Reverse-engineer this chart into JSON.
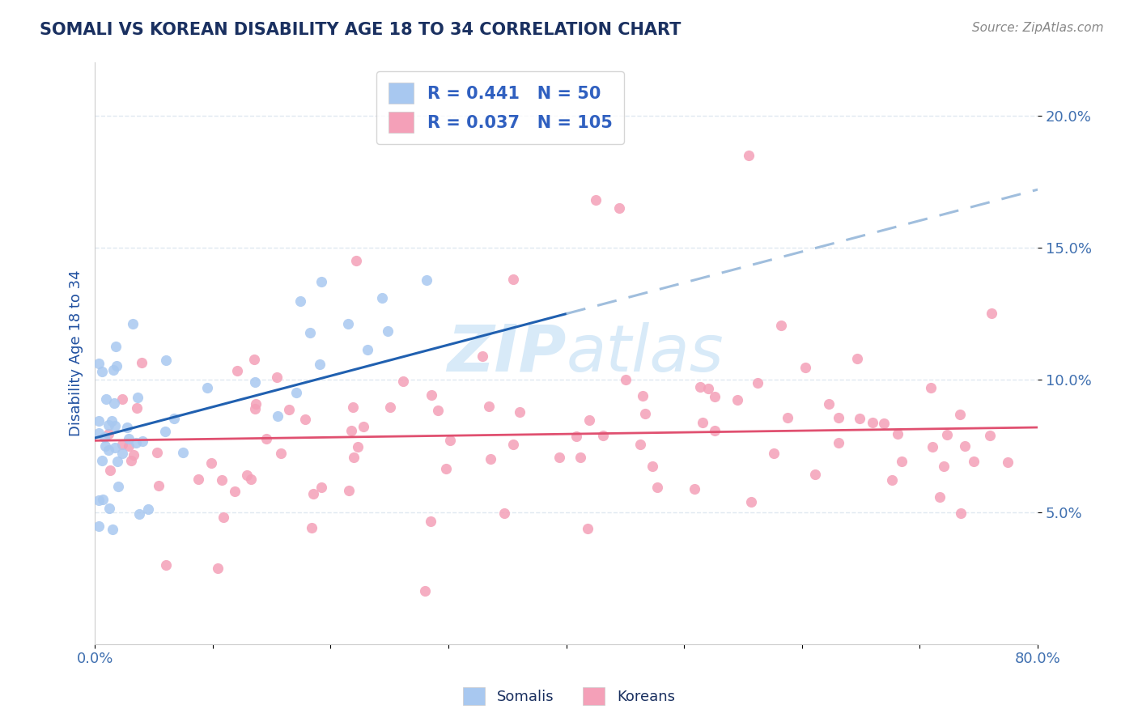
{
  "title": "SOMALI VS KOREAN DISABILITY AGE 18 TO 34 CORRELATION CHART",
  "source_text": "Source: ZipAtlas.com",
  "ylabel": "Disability Age 18 to 34",
  "xlim": [
    0.0,
    0.8
  ],
  "ylim": [
    0.0,
    0.22
  ],
  "somali_R": 0.441,
  "somali_N": 50,
  "korean_R": 0.037,
  "korean_N": 105,
  "somali_color": "#A8C8F0",
  "korean_color": "#F4A0B8",
  "somali_line_color": "#2060B0",
  "korean_line_color": "#E05070",
  "dashed_line_color": "#A0BEDD",
  "watermark_color": "#D8EAF8",
  "title_color": "#1A3060",
  "axis_label_color": "#2050A0",
  "tick_color": "#4070B0",
  "grid_color": "#E0E8F0",
  "background_color": "#FFFFFF",
  "legend_text_color": "#3060C0",
  "source_color": "#888888"
}
